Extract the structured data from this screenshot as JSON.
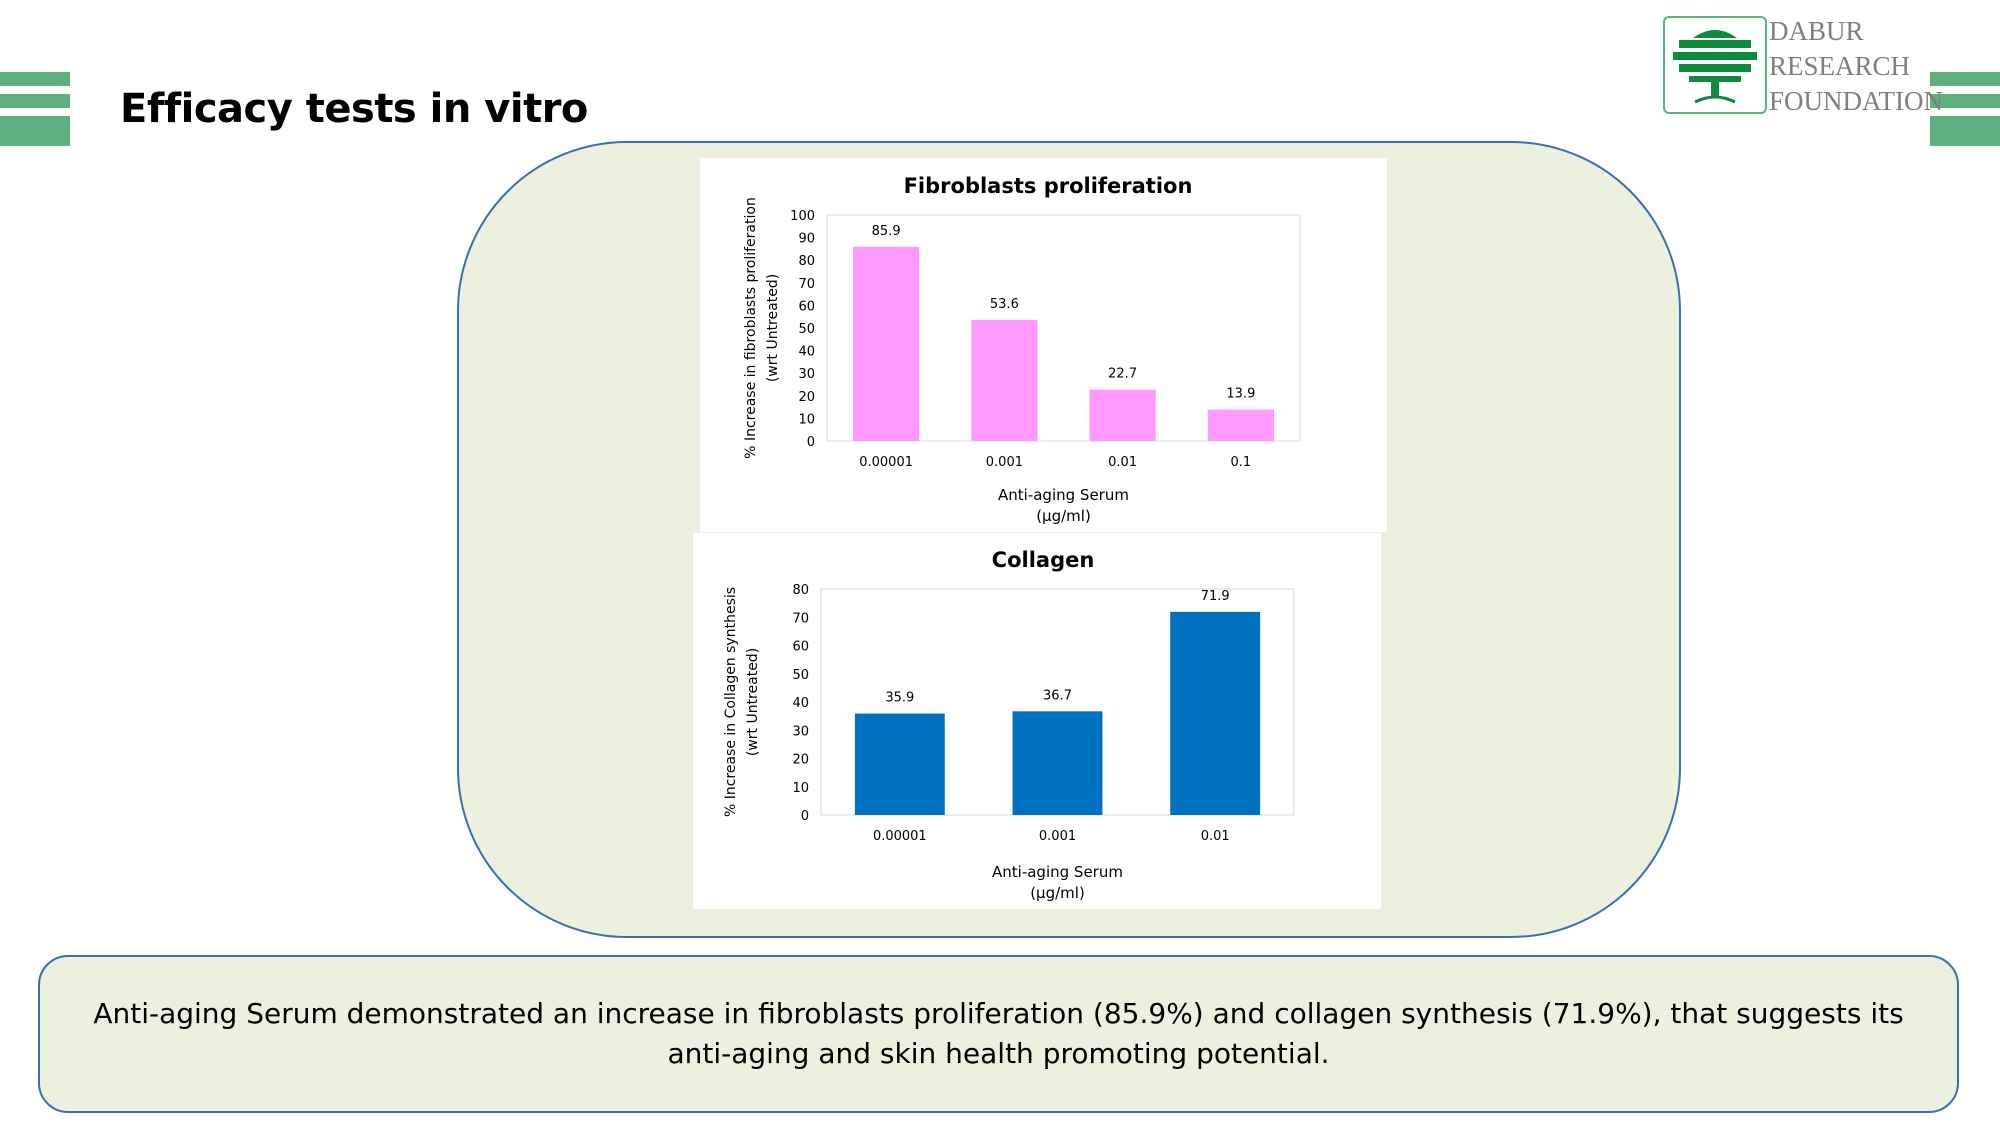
{
  "slide": {
    "title": "Efficacy tests in vitro",
    "summary": "Anti-aging Serum demonstrated an increase in fibroblasts proliferation (85.9%) and collagen synthesis (71.9%), that suggests its anti-aging and skin health promoting potential."
  },
  "logo": {
    "line1": "DABUR",
    "line2": "RESEARCH",
    "line3": "FOUNDATION",
    "icon": "tree-icon"
  },
  "colors": {
    "accent_green": "#5cb17f",
    "panel_fill": "#ebf1de",
    "panel_border": "#3a6fb0",
    "bar_pink": "#ff99ff",
    "bar_blue": "#0070c0"
  },
  "chart_data": [
    {
      "type": "bar",
      "title": "Fibroblasts proliferation",
      "categories": [
        "0.00001",
        "0.001",
        "0.01",
        "0.1"
      ],
      "values": [
        85.9,
        53.6,
        22.7,
        13.9
      ],
      "data_labels": [
        "85.9",
        "53.6",
        "22.7",
        "13.9"
      ],
      "xlabel": [
        "Anti-aging Serum",
        "(µg/ml)"
      ],
      "ylabel": [
        "% Increase in fibroblasts proliferation",
        "(wrt Untreated)"
      ],
      "ylim": [
        0,
        100
      ],
      "yticks": [
        "0",
        "10",
        "20",
        "30",
        "40",
        "50",
        "60",
        "70",
        "80",
        "90",
        "100"
      ],
      "grid": false,
      "legend": "none",
      "color": "#ff99ff"
    },
    {
      "type": "bar",
      "title": "Collagen",
      "categories": [
        "0.00001",
        "0.001",
        "0.01"
      ],
      "values": [
        35.9,
        36.7,
        71.9
      ],
      "data_labels": [
        "35.9",
        "36.7",
        "71.9"
      ],
      "xlabel": [
        "Anti-aging Serum",
        "(µg/ml)"
      ],
      "ylabel": [
        "% Increase in Collagen synthesis",
        "(wrt Untreated)"
      ],
      "ylim": [
        0,
        80
      ],
      "yticks": [
        "0",
        "10",
        "20",
        "30",
        "40",
        "50",
        "60",
        "70",
        "80"
      ],
      "grid": false,
      "legend": "none",
      "color": "#0070c0"
    }
  ]
}
